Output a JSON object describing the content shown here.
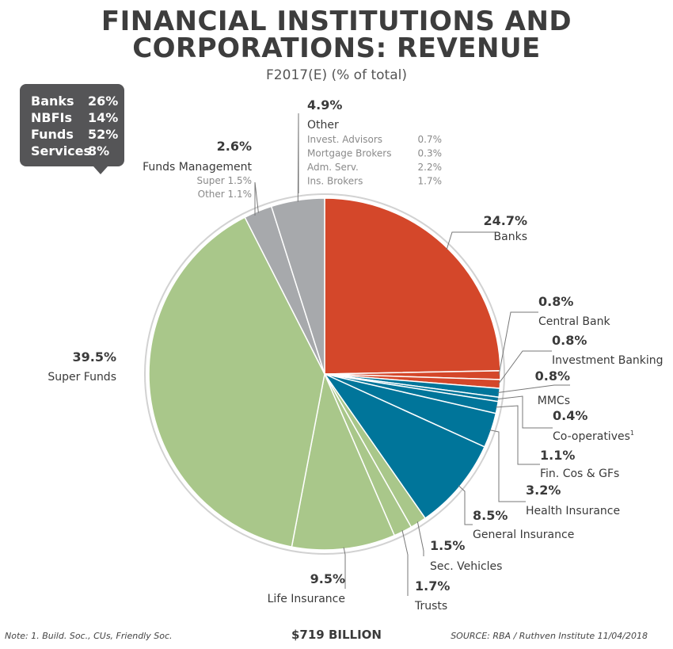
{
  "title_line1": "FINANCIAL INSTITUTIONS AND",
  "title_line2": "CORPORATIONS: REVENUE",
  "subtitle": "F2017(E) (% of total)",
  "legend": [
    {
      "name": "Banks",
      "value": "26%"
    },
    {
      "name": "NBFIs",
      "value": "14%"
    },
    {
      "name": "Funds",
      "value": "52%"
    },
    {
      "name": "Services",
      "value": "8%"
    }
  ],
  "total": "$719 BILLION",
  "note": "Note: 1. Build. Soc., CUs, Friendly Soc.",
  "source": "SOURCE: RBA / Ruthven Institute 11/04/2018",
  "colors": {
    "banks": "#d4472a",
    "nbfi": "#00759a",
    "funds": "#a9c78a",
    "services": "#a7a9ac",
    "leader": "#777777"
  },
  "chart_data": {
    "type": "pie",
    "start": "12 o'clock",
    "direction": "clockwise",
    "slices": [
      {
        "key": "banks",
        "label": "Banks",
        "pct_label": "24.7%",
        "value": 24.7,
        "group": "banks"
      },
      {
        "key": "central-bank",
        "label": "Central Bank",
        "pct_label": "0.8%",
        "value": 0.8,
        "group": "banks"
      },
      {
        "key": "investment-banking",
        "label": "Investment Banking",
        "pct_label": "0.8%",
        "value": 0.8,
        "group": "banks"
      },
      {
        "key": "mmcs",
        "label": "MMCs",
        "pct_label": "0.8%",
        "value": 0.8,
        "group": "nbfi"
      },
      {
        "key": "co-operatives",
        "label": "Co-operatives",
        "label_sup": "1.",
        "pct_label": "0.4%",
        "value": 0.4,
        "group": "nbfi"
      },
      {
        "key": "fin-cos",
        "label": "Fin. Cos & GFs",
        "pct_label": "1.1%",
        "value": 1.1,
        "group": "nbfi"
      },
      {
        "key": "health-insurance",
        "label": "Health Insurance",
        "pct_label": "3.2%",
        "value": 3.2,
        "group": "nbfi"
      },
      {
        "key": "general-insurance",
        "label": "General Insurance",
        "pct_label": "8.5%",
        "value": 8.5,
        "group": "nbfi"
      },
      {
        "key": "sec-vehicles",
        "label": "Sec. Vehicles",
        "pct_label": "1.5%",
        "value": 1.5,
        "group": "funds"
      },
      {
        "key": "trusts",
        "label": "Trusts",
        "pct_label": "1.7%",
        "value": 1.7,
        "group": "funds"
      },
      {
        "key": "life-insurance",
        "label": "Life Insurance",
        "pct_label": "9.5%",
        "value": 9.5,
        "group": "funds"
      },
      {
        "key": "super-funds",
        "label": "Super Funds",
        "pct_label": "39.5%",
        "value": 39.5,
        "group": "funds"
      },
      {
        "key": "funds-management",
        "label": "Funds Management",
        "pct_label": "2.6%",
        "value": 2.6,
        "group": "services",
        "breakdown": [
          {
            "name": "Super",
            "value": "1.5%"
          },
          {
            "name": "Other",
            "value": "1.1%"
          }
        ]
      },
      {
        "key": "other",
        "label": "Other",
        "pct_label": "4.9%",
        "value": 4.9,
        "group": "services",
        "breakdown": [
          {
            "name": "Invest. Advisors",
            "value": "0.7%"
          },
          {
            "name": "Mortgage Brokers",
            "value": "0.3%"
          },
          {
            "name": "Adm. Serv.",
            "value": "2.2%"
          },
          {
            "name": "Ins. Brokers",
            "value": "1.7%"
          }
        ]
      }
    ]
  }
}
